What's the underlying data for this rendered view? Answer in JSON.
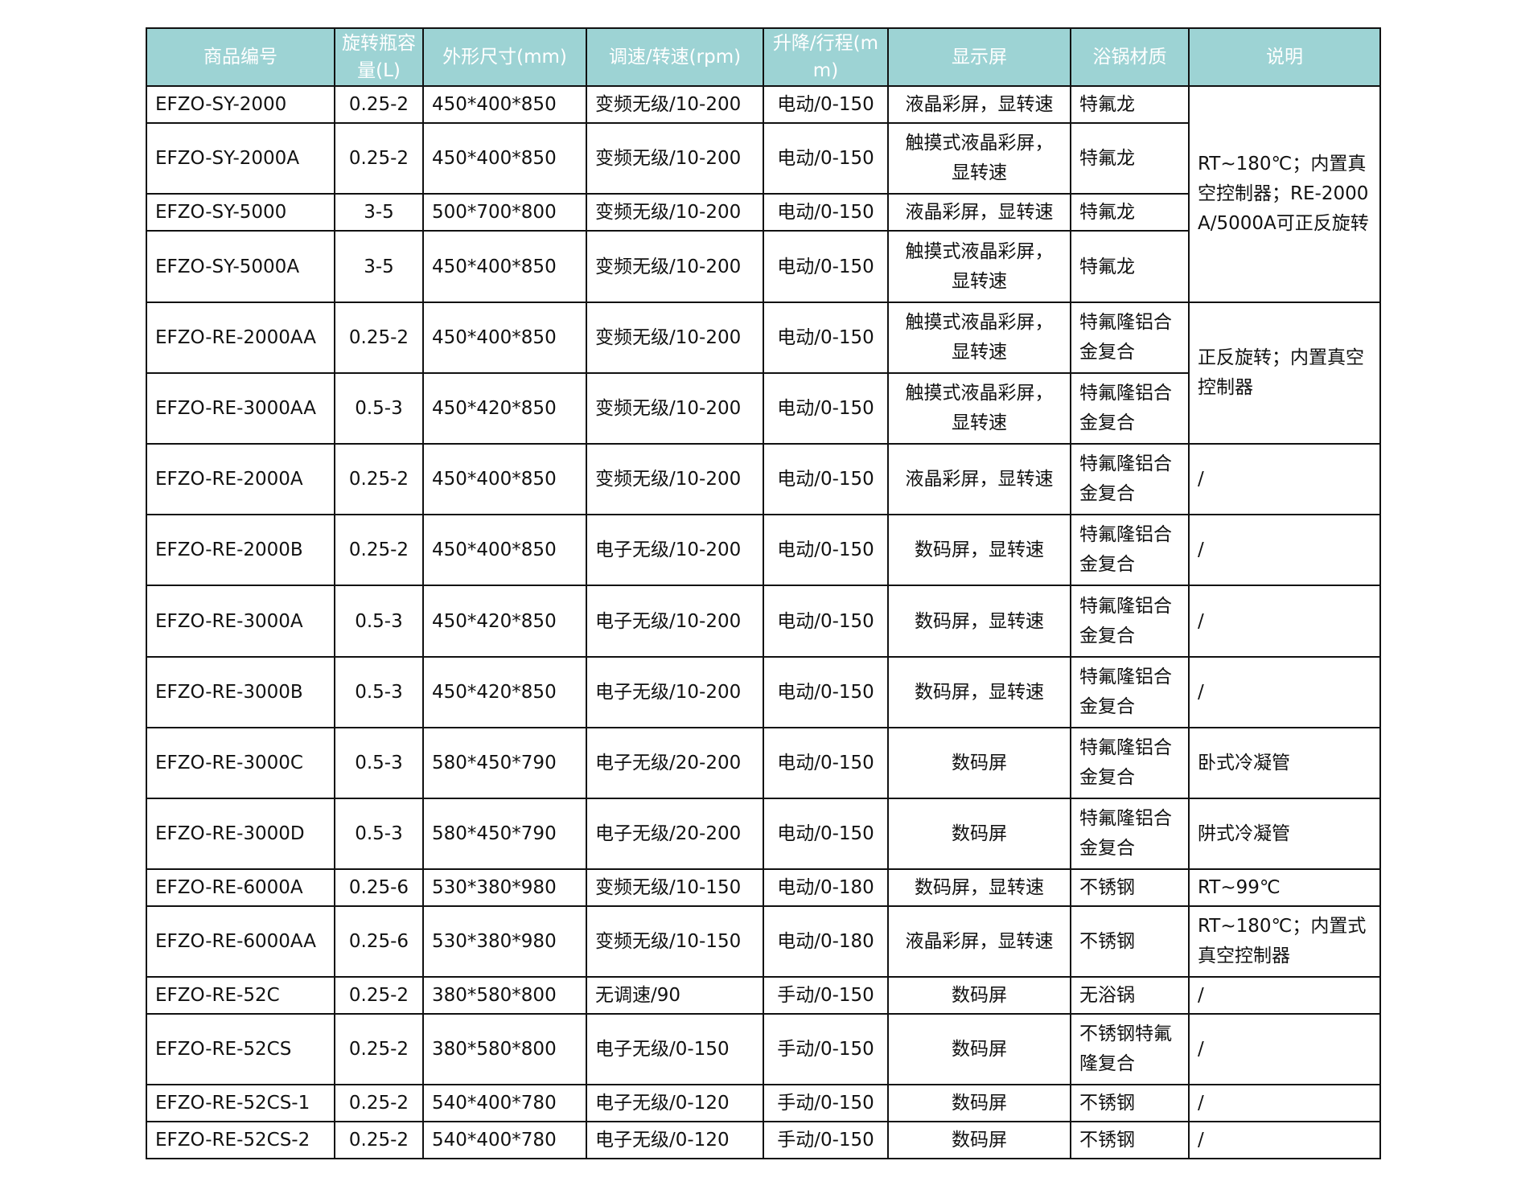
{
  "header_color": "#9dd3d4",
  "headers": [
    "商品编号",
    "旋转瓶容量(L)",
    "外形尺寸(mm)",
    "调速/转速(rpm)",
    "升降/行程(mm)",
    "显示屏",
    "浴锅材质",
    "说明"
  ],
  "rows": [
    {
      "model": "EFZO-SY-2000",
      "capacity": "0.25-2",
      "size": "450*400*850",
      "speed": "变频无级/10-200",
      "lift": "电动/0-150",
      "display": "液晶彩屏，显转速",
      "bath": "特氟龙"
    },
    {
      "model": "EFZO-SY-2000A",
      "capacity": "0.25-2",
      "size": "450*400*850",
      "speed": "变频无级/10-200",
      "lift": "电动/0-150",
      "display": "触摸式液晶彩屏，显转速",
      "bath": "特氟龙"
    },
    {
      "model": "EFZO-SY-5000",
      "capacity": "3-5",
      "size": "500*700*800",
      "speed": "变频无级/10-200",
      "lift": "电动/0-150",
      "display": "液晶彩屏，显转速",
      "bath": "特氟龙"
    },
    {
      "model": "EFZO-SY-5000A",
      "capacity": "3-5",
      "size": "450*400*850",
      "speed": "变频无级/10-200",
      "lift": "电动/0-150",
      "display": "触摸式液晶彩屏，显转速",
      "bath": "特氟龙"
    },
    {
      "model": "EFZO-RE-2000AA",
      "capacity": "0.25-2",
      "size": "450*400*850",
      "speed": "变频无级/10-200",
      "lift": "电动/0-150",
      "display": "触摸式液晶彩屏，显转速",
      "bath": "特氟隆铝合金复合"
    },
    {
      "model": "EFZO-RE-3000AA",
      "capacity": "0.5-3",
      "size": "450*420*850",
      "speed": "变频无级/10-200",
      "lift": "电动/0-150",
      "display": "触摸式液晶彩屏，显转速",
      "bath": "特氟隆铝合金复合"
    },
    {
      "model": "EFZO-RE-2000A",
      "capacity": "0.25-2",
      "size": "450*400*850",
      "speed": "变频无级/10-200",
      "lift": "电动/0-150",
      "display": "液晶彩屏，显转速",
      "bath": "特氟隆铝合金复合",
      "note": "/"
    },
    {
      "model": "EFZO-RE-2000B",
      "capacity": "0.25-2",
      "size": "450*400*850",
      "speed": "电子无级/10-200",
      "lift": "电动/0-150",
      "display": "数码屏，显转速",
      "bath": "特氟隆铝合金复合",
      "note": "/"
    },
    {
      "model": "EFZO-RE-3000A",
      "capacity": "0.5-3",
      "size": "450*420*850",
      "speed": "电子无级/10-200",
      "lift": "电动/0-150",
      "display": "数码屏，显转速",
      "bath": "特氟隆铝合金复合",
      "note": "/"
    },
    {
      "model": "EFZO-RE-3000B",
      "capacity": "0.5-3",
      "size": "450*420*850",
      "speed": "电子无级/10-200",
      "lift": "电动/0-150",
      "display": "数码屏，显转速",
      "bath": "特氟隆铝合金复合",
      "note": "/"
    },
    {
      "model": "EFZO-RE-3000C",
      "capacity": "0.5-3",
      "size": "580*450*790",
      "speed": "电子无级/20-200",
      "lift": "电动/0-150",
      "display": "数码屏",
      "bath": "特氟隆铝合金复合",
      "note": "卧式冷凝管"
    },
    {
      "model": "EFZO-RE-3000D",
      "capacity": "0.5-3",
      "size": "580*450*790",
      "speed": "电子无级/20-200",
      "lift": "电动/0-150",
      "display": "数码屏",
      "bath": "特氟隆铝合金复合",
      "note": "阱式冷凝管"
    },
    {
      "model": "EFZO-RE-6000A",
      "capacity": "0.25-6",
      "size": "530*380*980",
      "speed": "变频无级/10-150",
      "lift": "电动/0-180",
      "display": "数码屏，显转速",
      "bath": "不锈钢",
      "note": "RT~99℃"
    },
    {
      "model": "EFZO-RE-6000AA",
      "capacity": "0.25-6",
      "size": "530*380*980",
      "speed": "变频无级/10-150",
      "lift": "电动/0-180",
      "display": "液晶彩屏，显转速",
      "bath": "不锈钢",
      "note": "RT~180℃；内置式真空控制器"
    },
    {
      "model": "EFZO-RE-52C",
      "capacity": "0.25-2",
      "size": "380*580*800",
      "speed": "无调速/90",
      "lift": "手动/0-150",
      "display": "数码屏",
      "bath": "无浴锅",
      "note": "/"
    },
    {
      "model": "EFZO-RE-52CS",
      "capacity": "0.25-2",
      "size": "380*580*800",
      "speed": "电子无级/0-150",
      "lift": "手动/0-150",
      "display": "数码屏",
      "bath": "不锈钢特氟隆复合",
      "note": "/"
    },
    {
      "model": "EFZO-RE-52CS-1",
      "capacity": "0.25-2",
      "size": "540*400*780",
      "speed": "电子无级/0-120",
      "lift": "手动/0-150",
      "display": "数码屏",
      "bath": "不锈钢",
      "note": "/"
    },
    {
      "model": "EFZO-RE-52CS-2",
      "capacity": "0.25-2",
      "size": "540*400*780",
      "speed": "电子无级/0-120",
      "lift": "手动/0-150",
      "display": "数码屏",
      "bath": "不锈钢",
      "note": "/"
    }
  ],
  "merged_notes": [
    {
      "text": "RT~180℃；内置真空控制器；RE-2000A/5000A可正反旋转",
      "start": 0,
      "span": 4
    },
    {
      "text": "正反旋转；内置真空控制器",
      "start": 4,
      "span": 2
    }
  ]
}
